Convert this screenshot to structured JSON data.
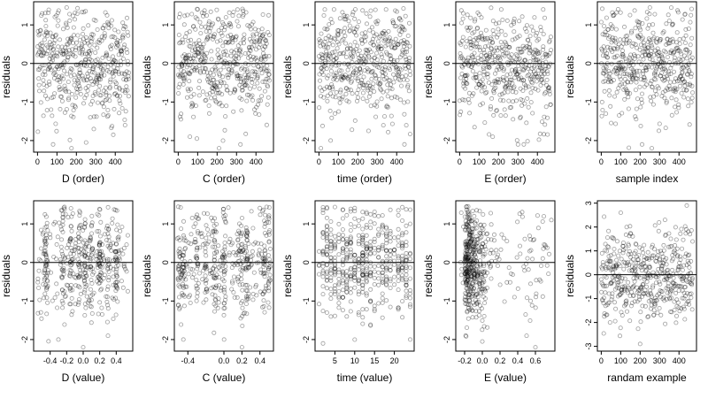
{
  "chart_data": [
    {
      "type": "scatter",
      "xlabel": "D (order)",
      "ylabel": "residuals",
      "xlim": [
        -20,
        490
      ],
      "ylim": [
        -2.3,
        1.6
      ],
      "xticks": [
        0,
        100,
        200,
        300,
        400
      ],
      "yticks": [
        -2,
        -1,
        0,
        1
      ],
      "reference_line_y": 0,
      "n_points": 480,
      "x_pattern": "index",
      "x_range": [
        0,
        470
      ],
      "y_sd": 0.7,
      "notable_points": [
        {
          "x": 80,
          "y": -2.1
        },
        {
          "x": 175,
          "y": -2.2
        },
        {
          "x": 250,
          "y": -2.05
        },
        {
          "x": 150,
          "y": 1.45
        },
        {
          "x": 390,
          "y": -1.85
        }
      ]
    },
    {
      "type": "scatter",
      "xlabel": "C (order)",
      "ylabel": "residuals",
      "xlim": [
        -20,
        490
      ],
      "ylim": [
        -2.3,
        1.6
      ],
      "xticks": [
        0,
        100,
        200,
        300,
        400
      ],
      "yticks": [
        -2,
        -1,
        0,
        1
      ],
      "reference_line_y": 0,
      "n_points": 480,
      "x_pattern": "index",
      "x_range": [
        0,
        470
      ],
      "y_sd": 0.7,
      "notable_points": [
        {
          "x": 60,
          "y": -1.9
        },
        {
          "x": 210,
          "y": -2.2
        },
        {
          "x": 320,
          "y": -2.1
        },
        {
          "x": 100,
          "y": 1.4
        }
      ]
    },
    {
      "type": "scatter",
      "xlabel": "time (order)",
      "ylabel": "residuals",
      "xlim": [
        -20,
        490
      ],
      "ylim": [
        -2.3,
        1.6
      ],
      "xticks": [
        0,
        100,
        200,
        300,
        400
      ],
      "yticks": [
        -2,
        -1,
        0,
        1
      ],
      "reference_line_y": 0,
      "n_points": 480,
      "x_pattern": "index",
      "x_range": [
        0,
        470
      ],
      "y_sd": 0.7,
      "notable_points": [
        {
          "x": 10,
          "y": -2.2
        },
        {
          "x": 60,
          "y": -2.0
        },
        {
          "x": 440,
          "y": -2.1
        },
        {
          "x": 30,
          "y": 1.4
        }
      ]
    },
    {
      "type": "scatter",
      "xlabel": "E (order)",
      "ylabel": "residuals",
      "xlim": [
        -20,
        490
      ],
      "ylim": [
        -2.3,
        1.6
      ],
      "xticks": [
        0,
        100,
        200,
        300,
        400
      ],
      "yticks": [
        -2,
        -1,
        0,
        1
      ],
      "reference_line_y": 0,
      "n_points": 480,
      "x_pattern": "index",
      "x_range": [
        0,
        470
      ],
      "y_sd": 0.7,
      "notable_points": [
        {
          "x": 170,
          "y": -1.9
        },
        {
          "x": 300,
          "y": -2.1
        },
        {
          "x": 330,
          "y": -2.1
        },
        {
          "x": 430,
          "y": 1.4
        }
      ]
    },
    {
      "type": "scatter",
      "xlabel": "sample index",
      "ylabel": "residuals",
      "xlim": [
        -20,
        490
      ],
      "ylim": [
        -2.3,
        1.6
      ],
      "xticks": [
        0,
        100,
        200,
        300,
        400
      ],
      "yticks": [
        -2,
        -1,
        0,
        1
      ],
      "reference_line_y": 0,
      "n_points": 480,
      "x_pattern": "index",
      "x_range": [
        0,
        470
      ],
      "y_sd": 0.7,
      "notable_points": [
        {
          "x": 210,
          "y": -2.1
        },
        {
          "x": 260,
          "y": -2.2
        },
        {
          "x": 250,
          "y": 1.45
        }
      ]
    },
    {
      "type": "scatter",
      "xlabel": "D (value)",
      "ylabel": "residuals",
      "xlim": [
        -0.6,
        0.6
      ],
      "ylim": [
        -2.3,
        1.6
      ],
      "xticks": [
        -0.4,
        -0.2,
        0.0,
        0.2,
        0.4
      ],
      "xtick_labels": [
        "-0.4",
        "-0.2",
        "0.0",
        "0.2",
        "0.4"
      ],
      "yticks": [
        -2,
        -1,
        0,
        1
      ],
      "reference_line_y": 0,
      "n_points": 480,
      "x_pattern": "clustered",
      "x_clusters": [
        -0.45,
        -0.25,
        -0.15,
        -0.05,
        0.02,
        0.1,
        0.2,
        0.3,
        0.4
      ],
      "x_range": [
        -0.55,
        0.55
      ],
      "y_sd": 0.7,
      "notable_points": [
        {
          "x": -0.3,
          "y": -2.0
        },
        {
          "x": 0.0,
          "y": -2.2
        },
        {
          "x": 0.3,
          "y": -1.9
        }
      ]
    },
    {
      "type": "scatter",
      "xlabel": "C (value)",
      "ylabel": "residuals",
      "xlim": [
        -0.55,
        0.55
      ],
      "ylim": [
        -2.3,
        1.6
      ],
      "xticks": [
        -0.4,
        0.0,
        0.2,
        0.4
      ],
      "xtick_labels": [
        "-0.4",
        "0.0",
        "0.2",
        "0.4"
      ],
      "yticks": [
        -2,
        -1,
        0,
        1
      ],
      "reference_line_y": 0,
      "n_points": 480,
      "x_pattern": "clustered",
      "x_clusters": [
        -0.5,
        -0.45,
        -0.3,
        -0.2,
        -0.1,
        0.0,
        0.2,
        0.25,
        0.45,
        0.5
      ],
      "x_range": [
        -0.5,
        0.5
      ],
      "y_sd": 0.7,
      "notable_points": [
        {
          "x": -0.45,
          "y": -2.0
        },
        {
          "x": 0.2,
          "y": -2.2
        }
      ]
    },
    {
      "type": "scatter",
      "xlabel": "time (value)",
      "ylabel": "residuals",
      "xlim": [
        0,
        25
      ],
      "ylim": [
        -2.3,
        1.6
      ],
      "xticks": [
        5,
        10,
        15,
        20
      ],
      "xtick_labels": [
        "5",
        "10",
        "15",
        "20"
      ],
      "yticks": [
        -2,
        -1,
        0,
        1
      ],
      "reference_line_y": 0,
      "n_points": 480,
      "x_pattern": "integer",
      "x_range": [
        1,
        24
      ],
      "y_sd": 0.7,
      "notable_points": [
        {
          "x": 2,
          "y": -2.1
        },
        {
          "x": 24,
          "y": -2.0
        },
        {
          "x": 3,
          "y": 1.4
        }
      ]
    },
    {
      "type": "scatter",
      "xlabel": "E (value)",
      "ylabel": "residuals",
      "xlim": [
        -0.3,
        0.82
      ],
      "ylim": [
        -2.3,
        1.6
      ],
      "xticks": [
        -0.2,
        0.0,
        0.2,
        0.4,
        0.6
      ],
      "xtick_labels": [
        "-0.2",
        "0.0",
        "0.2",
        "0.4",
        "0.6"
      ],
      "yticks": [
        -2,
        -1,
        0,
        1
      ],
      "reference_line_y": 0,
      "n_points": 480,
      "x_pattern": "skewed",
      "x_range": [
        -0.25,
        0.78
      ],
      "y_sd": 0.7,
      "notable_points": [
        {
          "x": 0.78,
          "y": 1.1
        },
        {
          "x": 0.5,
          "y": -1.9
        },
        {
          "x": 0.6,
          "y": -2.2
        },
        {
          "x": 0.0,
          "y": -2.05
        }
      ]
    },
    {
      "type": "scatter",
      "xlabel": "randam example",
      "ylabel": "residuals",
      "xlim": [
        -20,
        490
      ],
      "ylim": [
        -3.2,
        3.1
      ],
      "xticks": [
        0,
        100,
        200,
        300,
        400
      ],
      "yticks": [
        -3,
        -2,
        -1,
        0,
        1,
        2,
        3
      ],
      "reference_line_y": 0,
      "n_points": 480,
      "x_pattern": "index",
      "x_range": [
        0,
        470
      ],
      "y_sd": 1.0,
      "notable_points": [
        {
          "x": 200,
          "y": -2.9
        },
        {
          "x": 440,
          "y": 2.9
        },
        {
          "x": 100,
          "y": 2.6
        }
      ]
    }
  ],
  "colors": {
    "point_stroke": "#000000",
    "axis": "#000000",
    "background": "#ffffff"
  }
}
